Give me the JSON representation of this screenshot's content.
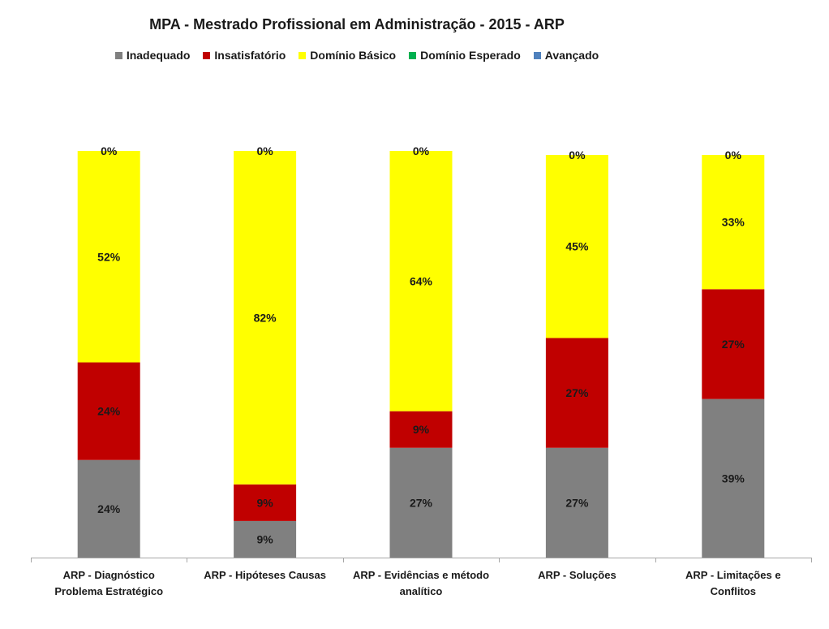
{
  "chart_data": {
    "type": "bar",
    "stacked": true,
    "title": "MPA - Mestrado Profissional em Administração - 2015 - ARP",
    "xlabel": "",
    "ylabel": "",
    "ylim": [
      0,
      100
    ],
    "grid": false,
    "legend_position": "top",
    "categories": [
      [
        "ARP - Diagnóstico",
        "Problema Estratégico"
      ],
      [
        "ARP - Hipóteses Causas"
      ],
      [
        "ARP - Evidências e método",
        "analítico"
      ],
      [
        "ARP - Soluções"
      ],
      [
        "ARP - Limitações e",
        "Conflitos"
      ]
    ],
    "series": [
      {
        "name": "Inadequado",
        "color": "#808080",
        "values": [
          24,
          9,
          27,
          27,
          39
        ],
        "labels": [
          "24%",
          "9%",
          "27%",
          "27%",
          "39%"
        ]
      },
      {
        "name": "Insatisfatório",
        "color": "#c00000",
        "values": [
          24,
          9,
          9,
          27,
          27
        ],
        "labels": [
          "24%",
          "9%",
          "9%",
          "27%",
          "27%"
        ]
      },
      {
        "name": "Domínio Básico",
        "color": "#ffff00",
        "values": [
          52,
          82,
          64,
          45,
          33
        ],
        "labels": [
          "52%",
          "82%",
          "64%",
          "45%",
          "33%"
        ]
      },
      {
        "name": "Domínio Esperado",
        "color": "#00b050",
        "values": [
          0,
          0,
          0,
          0,
          0
        ],
        "labels": [
          "0%",
          "0%",
          "0%",
          "0%",
          "0%"
        ]
      },
      {
        "name": "Avançado",
        "color": "#4f81bd",
        "values": [
          0,
          0,
          0,
          0,
          0
        ],
        "labels": []
      }
    ]
  }
}
